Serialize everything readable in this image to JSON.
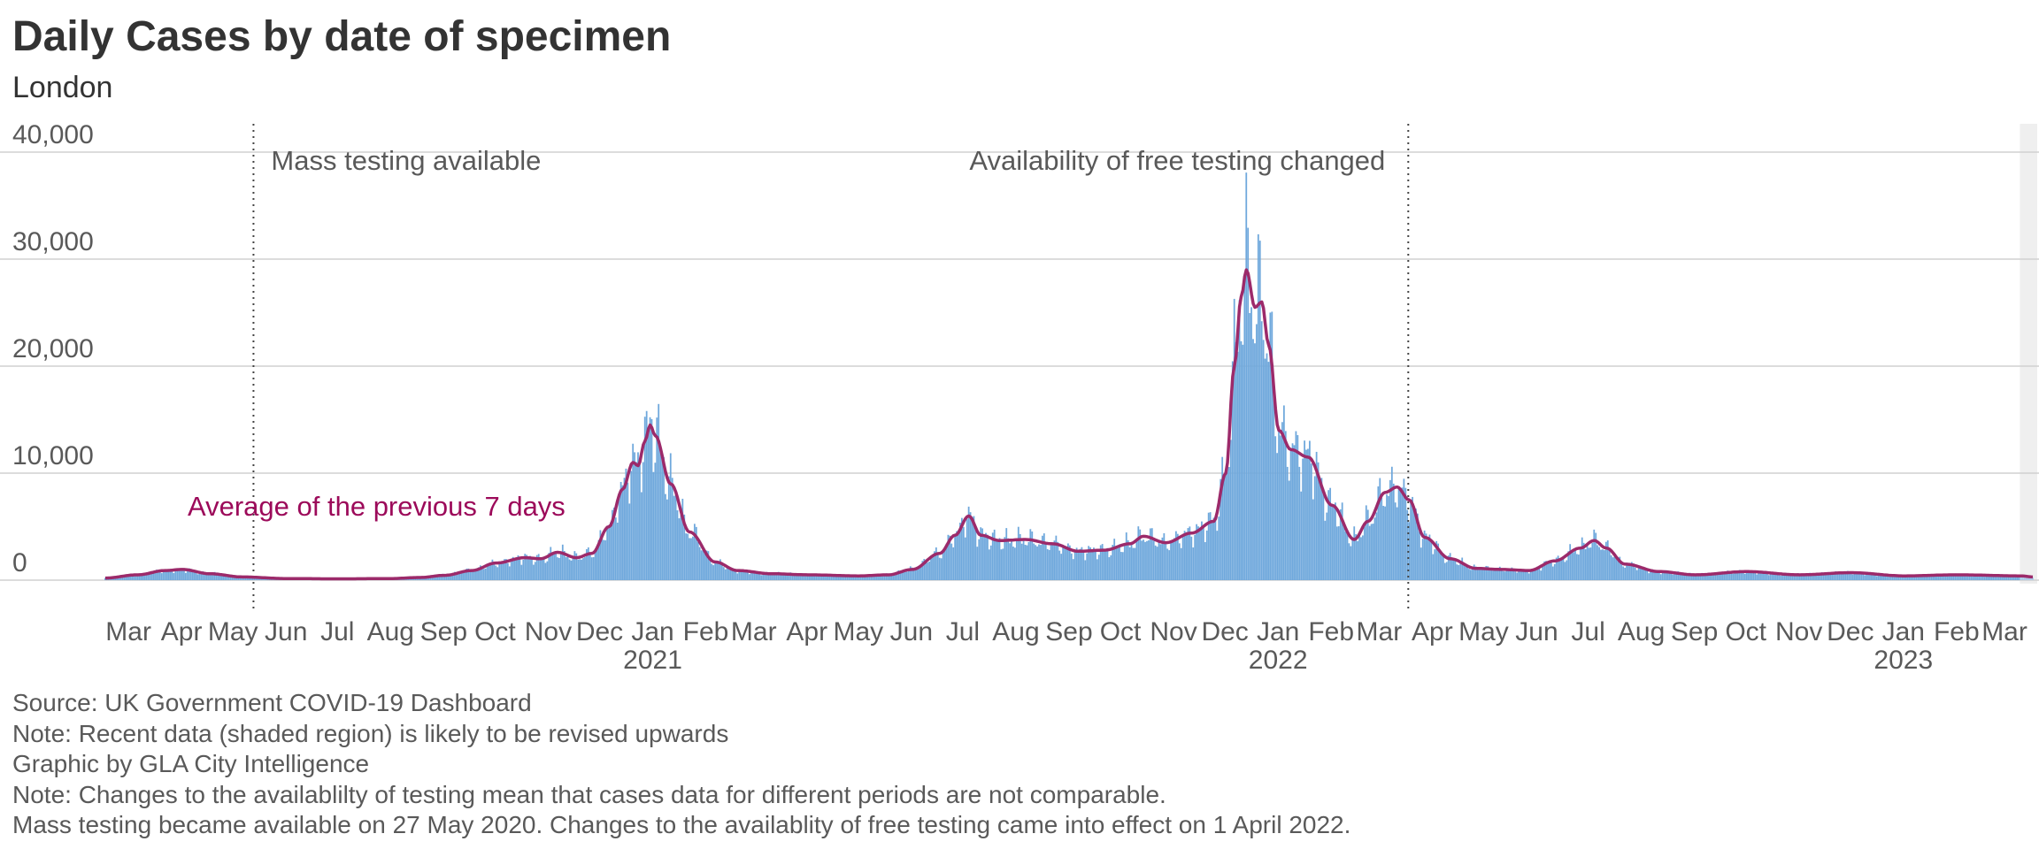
{
  "title": "Daily Cases by date of specimen",
  "subtitle": "London",
  "colors": {
    "bars": "#6fa8dc",
    "bars_recent": "#a9c9e8",
    "average_line": "#9c2a6a",
    "average_label": "#9c0a5a",
    "grid": "#d0d0d0",
    "text": "#595959",
    "title": "#333333",
    "shaded_region": "#efefef"
  },
  "annotations": [
    {
      "date": "2020-05-27",
      "label": "Mass testing available"
    },
    {
      "date": "2022-04-01",
      "label": "Availability of free testing changed"
    }
  ],
  "series_label": "Average of the previous 7 days",
  "notes": [
    "Source: UK Government COVID-19 Dashboard",
    "Note: Recent data (shaded region) is likely to be revised upwards",
    "Graphic by GLA City Intelligence",
    "Note: Changes to the availablilty of testing mean that cases data for different periods are not comparable.",
    "Mass testing became available on 27 May 2020. Changes to the availablity of free testing came into effect on 1 April 2022."
  ],
  "chart_data": {
    "type": "bar",
    "x_start": "2020-03-01",
    "x_end": "2023-03-31",
    "shaded_from": "2023-03-24",
    "ylim": [
      0,
      40000
    ],
    "yticks": [
      0,
      10000,
      20000,
      30000,
      40000
    ],
    "ytick_labels": [
      "0",
      "10,000",
      "20,000",
      "30,000",
      "40,000"
    ],
    "month_ticks": [
      {
        "date": "2020-03-15",
        "label": "Mar"
      },
      {
        "date": "2020-04-15",
        "label": "Apr"
      },
      {
        "date": "2020-05-15",
        "label": "May"
      },
      {
        "date": "2020-06-15",
        "label": "Jun"
      },
      {
        "date": "2020-07-15",
        "label": "Jul"
      },
      {
        "date": "2020-08-15",
        "label": "Aug"
      },
      {
        "date": "2020-09-15",
        "label": "Sep"
      },
      {
        "date": "2020-10-15",
        "label": "Oct"
      },
      {
        "date": "2020-11-15",
        "label": "Nov"
      },
      {
        "date": "2020-12-15",
        "label": "Dec"
      },
      {
        "date": "2021-01-15",
        "label": "Jan"
      },
      {
        "date": "2021-02-15",
        "label": "Feb"
      },
      {
        "date": "2021-03-15",
        "label": "Mar"
      },
      {
        "date": "2021-04-15",
        "label": "Apr"
      },
      {
        "date": "2021-05-15",
        "label": "May"
      },
      {
        "date": "2021-06-15",
        "label": "Jun"
      },
      {
        "date": "2021-07-15",
        "label": "Jul"
      },
      {
        "date": "2021-08-15",
        "label": "Aug"
      },
      {
        "date": "2021-09-15",
        "label": "Sep"
      },
      {
        "date": "2021-10-15",
        "label": "Oct"
      },
      {
        "date": "2021-11-15",
        "label": "Nov"
      },
      {
        "date": "2021-12-15",
        "label": "Dec"
      },
      {
        "date": "2022-01-15",
        "label": "Jan"
      },
      {
        "date": "2022-02-15",
        "label": "Feb"
      },
      {
        "date": "2022-03-15",
        "label": "Mar"
      },
      {
        "date": "2022-04-15",
        "label": "Apr"
      },
      {
        "date": "2022-05-15",
        "label": "May"
      },
      {
        "date": "2022-06-15",
        "label": "Jun"
      },
      {
        "date": "2022-07-15",
        "label": "Jul"
      },
      {
        "date": "2022-08-15",
        "label": "Aug"
      },
      {
        "date": "2022-09-15",
        "label": "Sep"
      },
      {
        "date": "2022-10-15",
        "label": "Oct"
      },
      {
        "date": "2022-11-15",
        "label": "Nov"
      },
      {
        "date": "2022-12-15",
        "label": "Dec"
      },
      {
        "date": "2023-01-15",
        "label": "Jan"
      },
      {
        "date": "2023-02-15",
        "label": "Feb"
      },
      {
        "date": "2023-03-15",
        "label": "Mar"
      }
    ],
    "year_ticks": [
      {
        "date": "2021-01-15",
        "label": "2021"
      },
      {
        "date": "2022-01-15",
        "label": "2022"
      },
      {
        "date": "2023-01-15",
        "label": "2023"
      }
    ],
    "average_series": {
      "name": "Average of the previous 7 days",
      "points": [
        [
          "2020-03-01",
          200
        ],
        [
          "2020-03-20",
          500
        ],
        [
          "2020-04-05",
          900
        ],
        [
          "2020-04-15",
          1000
        ],
        [
          "2020-05-01",
          600
        ],
        [
          "2020-05-20",
          300
        ],
        [
          "2020-06-15",
          150
        ],
        [
          "2020-07-15",
          120
        ],
        [
          "2020-08-15",
          150
        ],
        [
          "2020-09-01",
          250
        ],
        [
          "2020-09-15",
          450
        ],
        [
          "2020-10-01",
          900
        ],
        [
          "2020-10-15",
          1600
        ],
        [
          "2020-11-01",
          2100
        ],
        [
          "2020-11-10",
          2000
        ],
        [
          "2020-11-20",
          2600
        ],
        [
          "2020-12-01",
          2100
        ],
        [
          "2020-12-10",
          2500
        ],
        [
          "2020-12-20",
          5000
        ],
        [
          "2020-12-28",
          8500
        ],
        [
          "2021-01-03",
          11000
        ],
        [
          "2021-01-06",
          10700
        ],
        [
          "2021-01-10",
          13000
        ],
        [
          "2021-01-13",
          14500
        ],
        [
          "2021-01-16",
          13500
        ],
        [
          "2021-01-25",
          9000
        ],
        [
          "2021-02-05",
          4500
        ],
        [
          "2021-02-20",
          1700
        ],
        [
          "2021-03-05",
          900
        ],
        [
          "2021-03-25",
          600
        ],
        [
          "2021-04-15",
          500
        ],
        [
          "2021-05-15",
          400
        ],
        [
          "2021-06-01",
          500
        ],
        [
          "2021-06-15",
          1000
        ],
        [
          "2021-07-01",
          2500
        ],
        [
          "2021-07-10",
          4200
        ],
        [
          "2021-07-18",
          6000
        ],
        [
          "2021-07-25",
          4200
        ],
        [
          "2021-08-05",
          3700
        ],
        [
          "2021-08-20",
          3800
        ],
        [
          "2021-09-05",
          3400
        ],
        [
          "2021-09-20",
          2700
        ],
        [
          "2021-10-05",
          2800
        ],
        [
          "2021-10-20",
          3400
        ],
        [
          "2021-10-28",
          4100
        ],
        [
          "2021-11-10",
          3500
        ],
        [
          "2021-11-25",
          4400
        ],
        [
          "2021-12-08",
          5500
        ],
        [
          "2021-12-15",
          10000
        ],
        [
          "2021-12-20",
          20000
        ],
        [
          "2021-12-24",
          26500
        ],
        [
          "2021-12-27",
          29000
        ],
        [
          "2022-01-01",
          25500
        ],
        [
          "2022-01-05",
          26000
        ],
        [
          "2022-01-09",
          22000
        ],
        [
          "2022-01-15",
          14000
        ],
        [
          "2022-01-22",
          12200
        ],
        [
          "2022-02-01",
          11500
        ],
        [
          "2022-02-15",
          7000
        ],
        [
          "2022-02-28",
          3800
        ],
        [
          "2022-03-08",
          5500
        ],
        [
          "2022-03-18",
          8200
        ],
        [
          "2022-03-25",
          8700
        ],
        [
          "2022-04-01",
          7500
        ],
        [
          "2022-04-10",
          4000
        ],
        [
          "2022-04-25",
          2000
        ],
        [
          "2022-05-10",
          1100
        ],
        [
          "2022-05-25",
          1000
        ],
        [
          "2022-06-10",
          900
        ],
        [
          "2022-06-25",
          1800
        ],
        [
          "2022-07-10",
          3000
        ],
        [
          "2022-07-18",
          3700
        ],
        [
          "2022-07-25",
          3000
        ],
        [
          "2022-08-05",
          1500
        ],
        [
          "2022-08-25",
          800
        ],
        [
          "2022-09-15",
          500
        ],
        [
          "2022-10-15",
          800
        ],
        [
          "2022-11-15",
          500
        ],
        [
          "2022-12-15",
          700
        ],
        [
          "2023-01-15",
          400
        ],
        [
          "2023-02-15",
          500
        ],
        [
          "2023-03-24",
          400
        ],
        [
          "2023-03-31",
          300
        ]
      ]
    }
  }
}
